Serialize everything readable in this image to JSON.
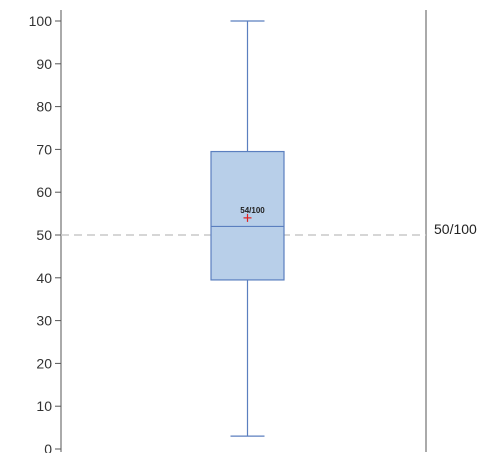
{
  "chart_data": {
    "type": "box",
    "title": "",
    "xlabel": "",
    "ylabel": "",
    "ylim": [
      0,
      100
    ],
    "yticks": [
      0,
      10,
      20,
      30,
      40,
      50,
      60,
      70,
      80,
      90,
      100
    ],
    "grid": false,
    "box": {
      "min": 3,
      "q1": 39.5,
      "median": 52,
      "q3": 69.5,
      "max": 100,
      "mean": 54,
      "mean_label": "54/100"
    },
    "reference_line": {
      "value": 50,
      "label": "50/100"
    },
    "colors": {
      "box_fill": "#b8cfe9",
      "box_stroke": "#5b7fbf",
      "mean_marker": "#e02020",
      "reference_line": "#c8c8c8",
      "axis": "#555555"
    }
  }
}
